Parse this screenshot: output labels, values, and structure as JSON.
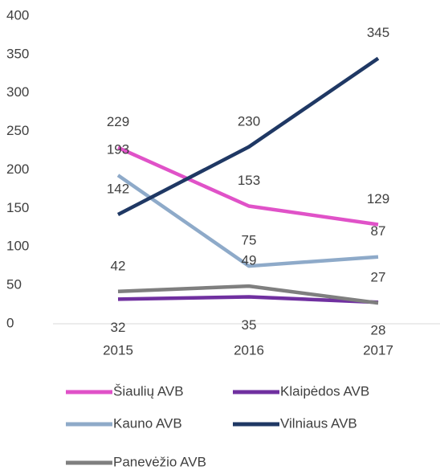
{
  "chart_data": {
    "type": "line",
    "categories": [
      "2015",
      "2016",
      "2017"
    ],
    "series": [
      {
        "name": "Šiaulių AVB",
        "color": "#e052c8",
        "values": [
          229,
          153,
          129
        ]
      },
      {
        "name": "Klaipėdos AVB",
        "color": "#7030a0",
        "values": [
          32,
          35,
          28
        ]
      },
      {
        "name": "Kauno AVB",
        "color": "#8eaac9",
        "values": [
          193,
          75,
          87
        ]
      },
      {
        "name": "Vilniaus AVB",
        "color": "#1f3864",
        "values": [
          142,
          230,
          345
        ]
      },
      {
        "name": "Panevėžio AVB",
        "color": "#7f7f7f",
        "values": [
          42,
          49,
          27
        ]
      }
    ],
    "ylim": [
      0,
      400
    ],
    "yticks": [
      0,
      50,
      100,
      150,
      200,
      250,
      300,
      350,
      400
    ],
    "grid": false,
    "legend": "bottom"
  }
}
